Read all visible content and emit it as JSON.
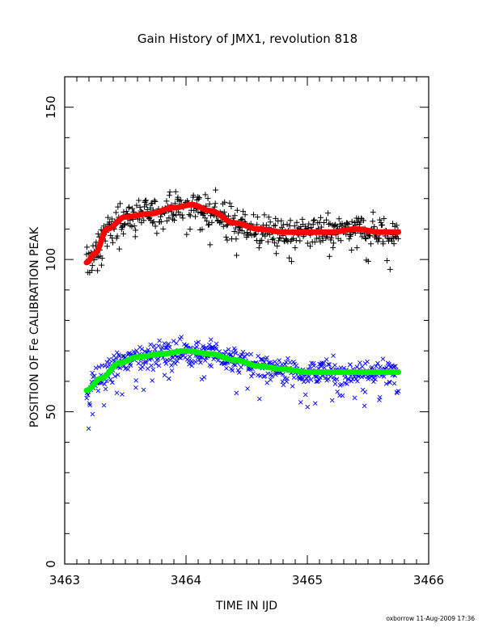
{
  "chart_data": {
    "type": "scatter",
    "title": "Gain History of JMX1, revolution 818",
    "xlabel": "TIME IN IJD",
    "ylabel": "POSITION OF Fe CALIBRATION PEAK",
    "xlim": [
      3463,
      3466
    ],
    "ylim": [
      0,
      160
    ],
    "x_ticks": [
      3463,
      3464,
      3465,
      3466
    ],
    "x_tick_labels": [
      "3463",
      "3464",
      "3465",
      "3466"
    ],
    "y_ticks": [
      0,
      50,
      100,
      150
    ],
    "y_tick_labels": [
      "0",
      "50",
      "100",
      "150"
    ],
    "grid": false,
    "legend": "none",
    "series": [
      {
        "marker": "plus",
        "color": "#000000",
        "scatter": 3.2,
        "x": [
          3463.18,
          3463.25,
          3463.35,
          3463.5,
          3463.7,
          3463.9,
          3464.05,
          3464.2,
          3464.4,
          3464.6,
          3464.8,
          3465.0,
          3465.2,
          3465.4,
          3465.6,
          3465.75
        ],
        "values": [
          99,
          102,
          110,
          114,
          115,
          117,
          118,
          116,
          112,
          110,
          109,
          109,
          109,
          110,
          109,
          108
        ]
      },
      {
        "marker": "cross",
        "color": "#0000ff",
        "scatter": 2.6,
        "x": [
          3463.18,
          3463.3,
          3463.45,
          3463.6,
          3463.8,
          3464.0,
          3464.2,
          3464.4,
          3464.6,
          3464.8,
          3465.0,
          3465.2,
          3465.4,
          3465.6,
          3465.75
        ],
        "values": [
          57,
          61,
          66,
          68,
          69,
          70,
          69,
          67,
          65,
          64,
          63,
          63,
          63,
          63,
          63
        ]
      },
      {
        "line": "fit",
        "color": "#ff0000",
        "x": [
          3463.18,
          3463.25,
          3463.35,
          3463.5,
          3463.7,
          3463.9,
          3464.05,
          3464.2,
          3464.4,
          3464.6,
          3464.8,
          3465.0,
          3465.2,
          3465.4,
          3465.6,
          3465.75
        ],
        "values": [
          99,
          102,
          110,
          114,
          115,
          117,
          118,
          116,
          112,
          110,
          109,
          109,
          109,
          110,
          109,
          109
        ]
      },
      {
        "line": "fit",
        "color": "#00ee00",
        "x": [
          3463.18,
          3463.3,
          3463.45,
          3463.6,
          3463.8,
          3464.0,
          3464.2,
          3464.4,
          3464.6,
          3464.8,
          3465.0,
          3465.2,
          3465.4,
          3465.6,
          3465.75
        ],
        "values": [
          57,
          61,
          66,
          68,
          69,
          70,
          69,
          67,
          65,
          64,
          63,
          63,
          63,
          63,
          63
        ]
      }
    ]
  },
  "footer": "oxborrow 11-Aug-2009 17:36"
}
